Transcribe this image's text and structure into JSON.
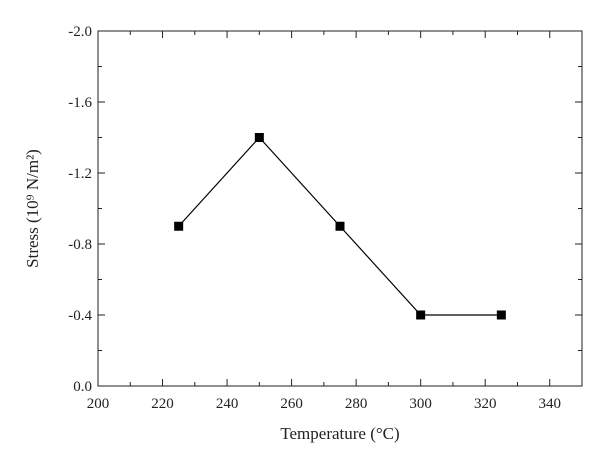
{
  "chart_data": {
    "type": "line",
    "xlabel": "Temperature (°C)",
    "ylabel": "Stress (10⁹ N/m²)",
    "xlim": [
      200,
      350
    ],
    "ylim": [
      0.0,
      -2.0
    ],
    "y_axis_inverted": true,
    "x_ticks": [
      "200",
      "220",
      "240",
      "260",
      "280",
      "300",
      "320",
      "340"
    ],
    "y_ticks": [
      "0.0",
      "-0.4",
      "-0.8",
      "-1.2",
      "-1.6",
      "-2.0"
    ],
    "grid": false,
    "legend": "none",
    "series": [
      {
        "marker": "square",
        "color": "#000000",
        "x": [
          225,
          250,
          275,
          300,
          325
        ],
        "y": [
          -0.9,
          -1.4,
          -0.9,
          -0.4,
          -0.4
        ]
      }
    ]
  }
}
